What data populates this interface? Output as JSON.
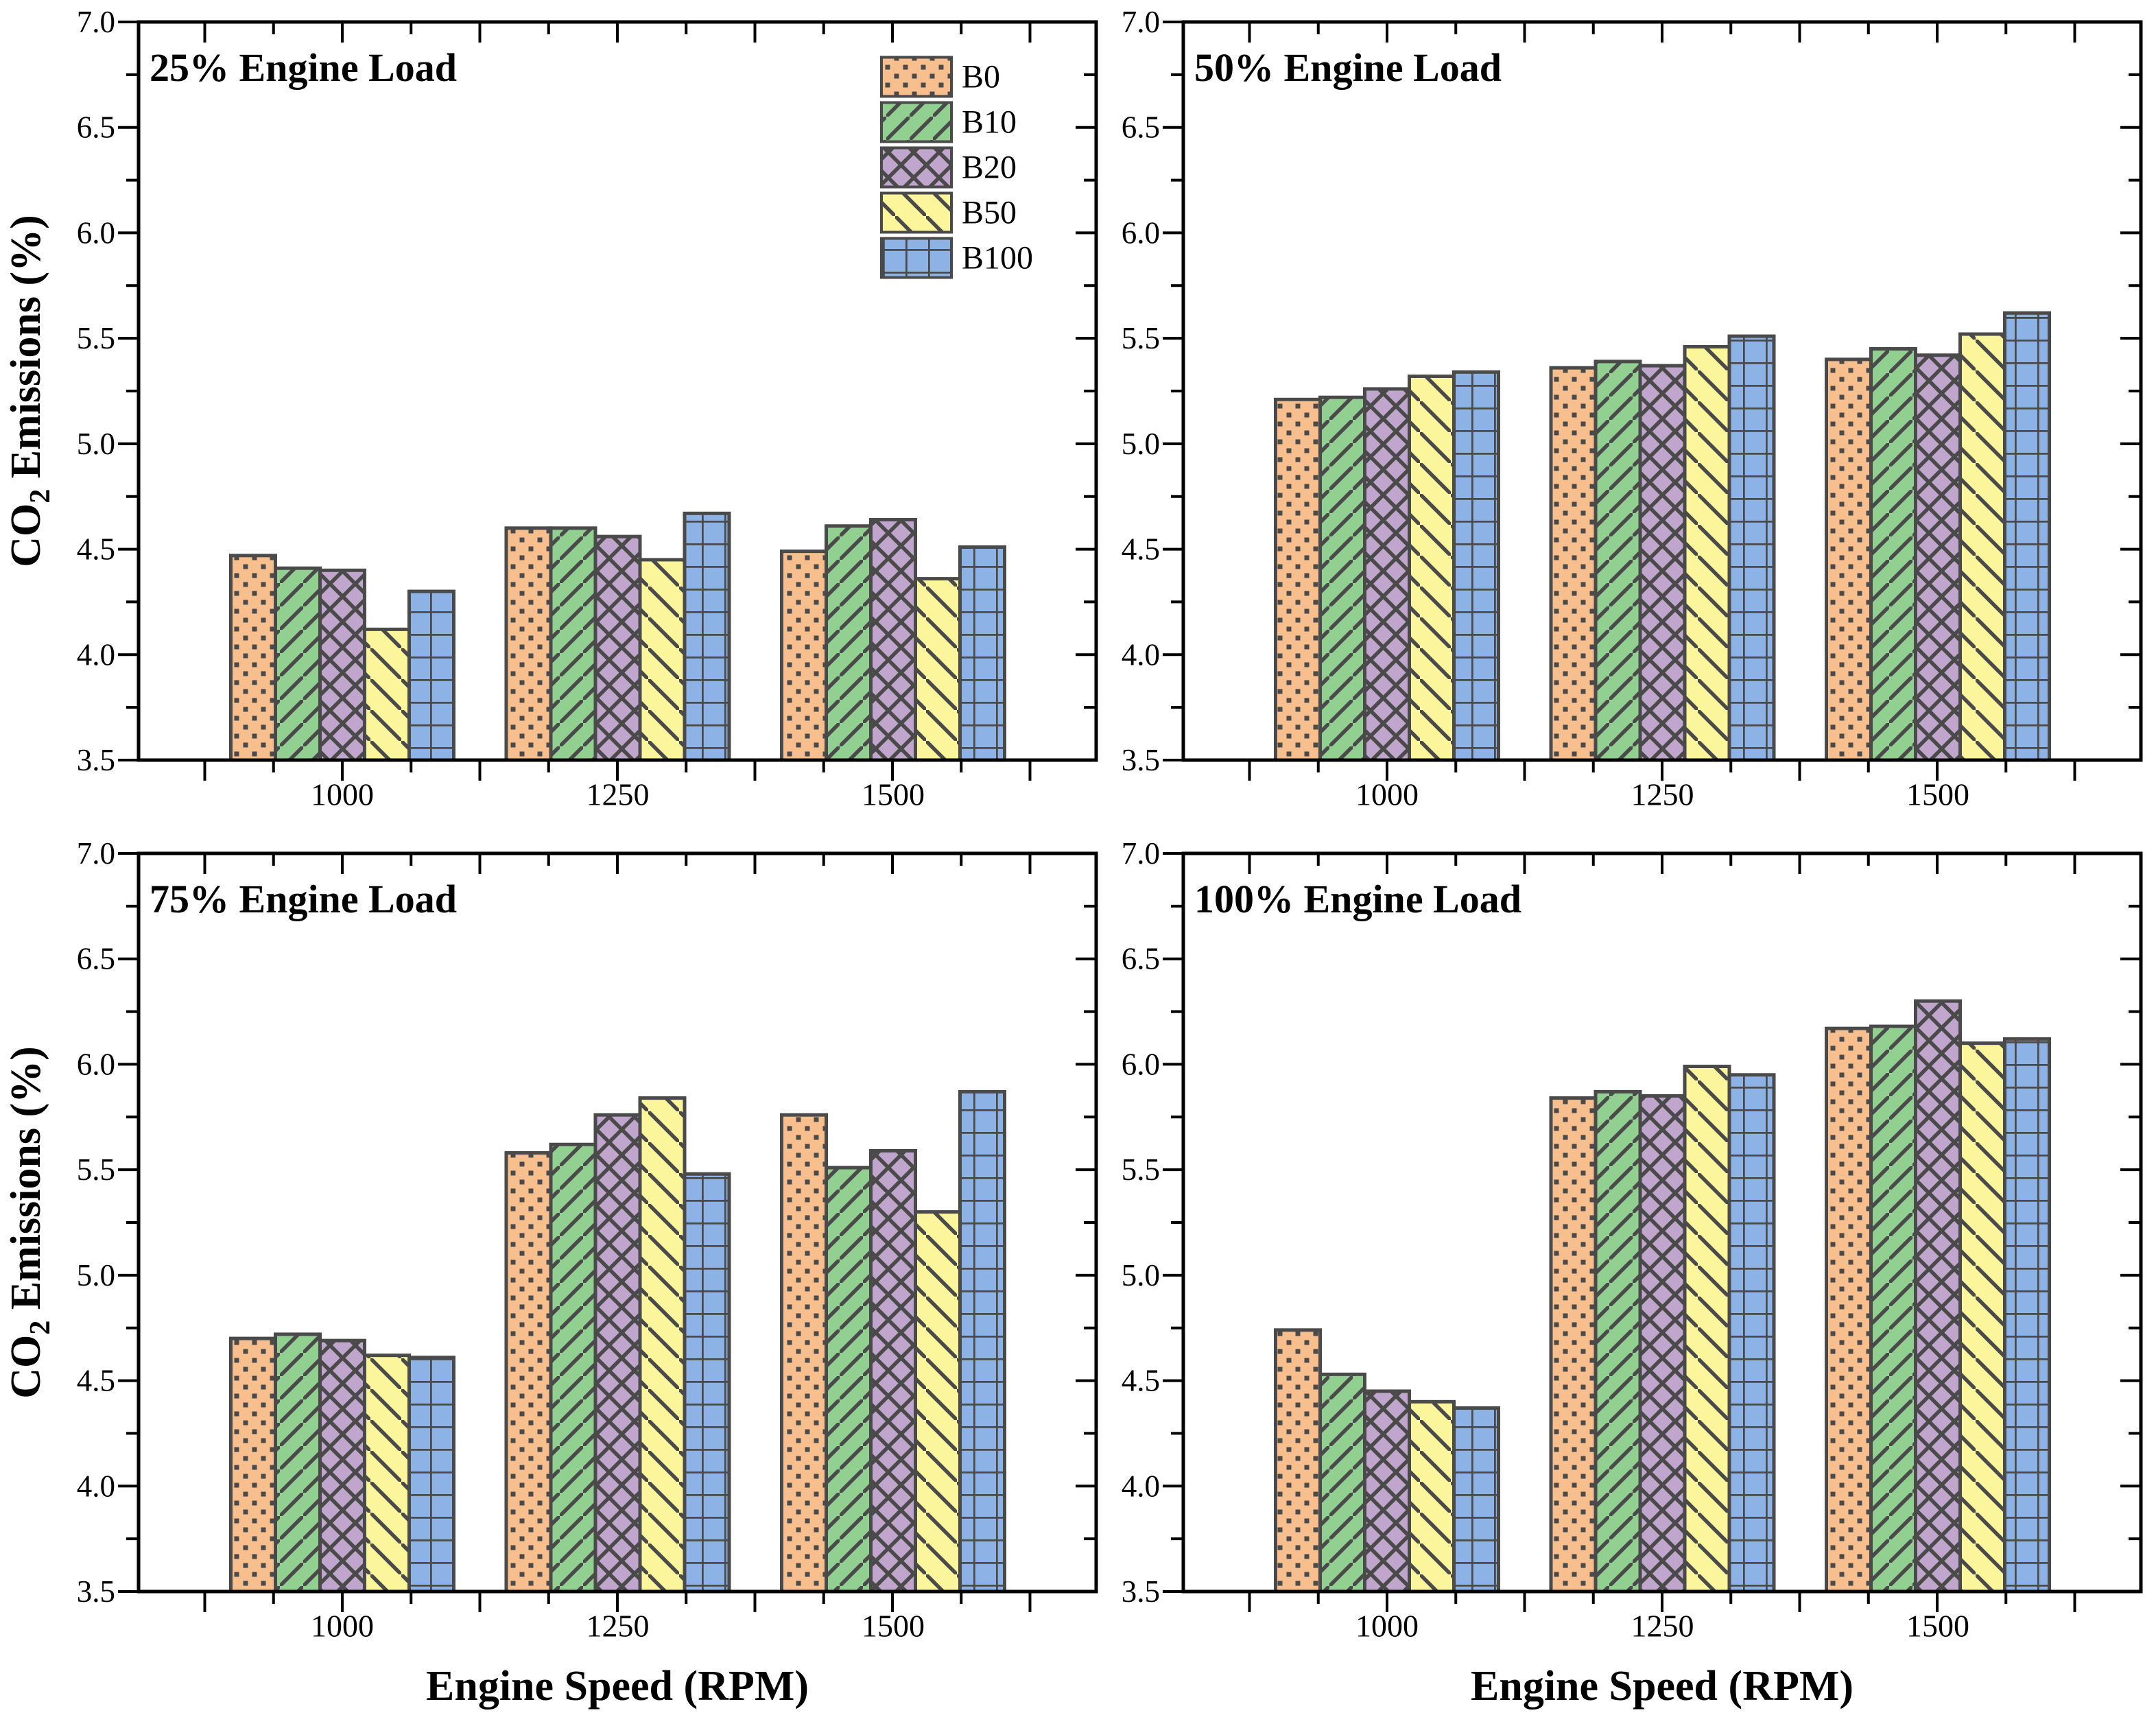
{
  "figure": {
    "y_axis_label": {
      "pre": "CO",
      "sub": "2",
      "post": " Emissions (%)"
    },
    "x_axis_label": "Engine Speed (RPM)",
    "background_color": "#ffffff",
    "spine_color": "#000000",
    "bar_edge_color": "#4a4a4a",
    "hatch_color": "#4a4a4a"
  },
  "legend": {
    "entries": [
      "B0",
      "B10",
      "B20",
      "B50",
      "B100"
    ],
    "position": "upper-right inside 25% panel",
    "frame": false
  },
  "series_styles": [
    {
      "name": "B0",
      "color": "#F7BF8E",
      "hatch": "dots"
    },
    {
      "name": "B10",
      "color": "#92D092",
      "hatch": "/"
    },
    {
      "name": "B20",
      "color": "#C0A6CD",
      "hatch": "x"
    },
    {
      "name": "B50",
      "color": "#FBF69B",
      "hatch": "\\"
    },
    {
      "name": "B100",
      "color": "#8DB3E6",
      "hatch": "+"
    }
  ],
  "chart_data": [
    {
      "type": "bar",
      "title": "25% Engine Load",
      "xlabel": "Engine Speed (RPM)",
      "ylabel": "CO2 Emissions (%)",
      "categories": [
        "1000",
        "1250",
        "1500"
      ],
      "ylim": [
        3.5,
        7.0
      ],
      "ytick_step": 0.5,
      "ytick_minor_step": 0.25,
      "grid": false,
      "series": [
        {
          "name": "B0",
          "values": [
            4.47,
            4.6,
            4.49
          ]
        },
        {
          "name": "B10",
          "values": [
            4.41,
            4.6,
            4.61
          ]
        },
        {
          "name": "B20",
          "values": [
            4.4,
            4.56,
            4.64
          ]
        },
        {
          "name": "B50",
          "values": [
            4.12,
            4.45,
            4.36
          ]
        },
        {
          "name": "B100",
          "values": [
            4.3,
            4.67,
            4.51
          ]
        }
      ]
    },
    {
      "type": "bar",
      "title": "50% Engine Load",
      "xlabel": "Engine Speed (RPM)",
      "ylabel": "CO2 Emissions (%)",
      "categories": [
        "1000",
        "1250",
        "1500"
      ],
      "ylim": [
        3.5,
        7.0
      ],
      "ytick_step": 0.5,
      "ytick_minor_step": 0.25,
      "grid": false,
      "series": [
        {
          "name": "B0",
          "values": [
            5.21,
            5.36,
            5.4
          ]
        },
        {
          "name": "B10",
          "values": [
            5.22,
            5.39,
            5.45
          ]
        },
        {
          "name": "B20",
          "values": [
            5.26,
            5.37,
            5.42
          ]
        },
        {
          "name": "B50",
          "values": [
            5.32,
            5.46,
            5.52
          ]
        },
        {
          "name": "B100",
          "values": [
            5.34,
            5.51,
            5.62
          ]
        }
      ]
    },
    {
      "type": "bar",
      "title": "75% Engine Load",
      "xlabel": "Engine Speed (RPM)",
      "ylabel": "CO2 Emissions (%)",
      "categories": [
        "1000",
        "1250",
        "1500"
      ],
      "ylim": [
        3.5,
        7.0
      ],
      "ytick_step": 0.5,
      "ytick_minor_step": 0.25,
      "grid": false,
      "series": [
        {
          "name": "B0",
          "values": [
            4.7,
            5.58,
            5.76
          ]
        },
        {
          "name": "B10",
          "values": [
            4.72,
            5.62,
            5.51
          ]
        },
        {
          "name": "B20",
          "values": [
            4.69,
            5.76,
            5.59
          ]
        },
        {
          "name": "B50",
          "values": [
            4.62,
            5.84,
            5.3
          ]
        },
        {
          "name": "B100",
          "values": [
            4.61,
            5.48,
            5.87
          ]
        }
      ]
    },
    {
      "type": "bar",
      "title": "100% Engine Load",
      "xlabel": "Engine Speed (RPM)",
      "ylabel": "CO2 Emissions (%)",
      "categories": [
        "1000",
        "1250",
        "1500"
      ],
      "ylim": [
        3.5,
        7.0
      ],
      "ytick_step": 0.5,
      "ytick_minor_step": 0.25,
      "grid": false,
      "series": [
        {
          "name": "B0",
          "values": [
            4.74,
            5.84,
            6.17
          ]
        },
        {
          "name": "B10",
          "values": [
            4.53,
            5.87,
            6.18
          ]
        },
        {
          "name": "B20",
          "values": [
            4.45,
            5.85,
            6.3
          ]
        },
        {
          "name": "B50",
          "values": [
            4.4,
            5.99,
            6.1
          ]
        },
        {
          "name": "B100",
          "values": [
            4.37,
            5.95,
            6.12
          ]
        }
      ]
    }
  ]
}
